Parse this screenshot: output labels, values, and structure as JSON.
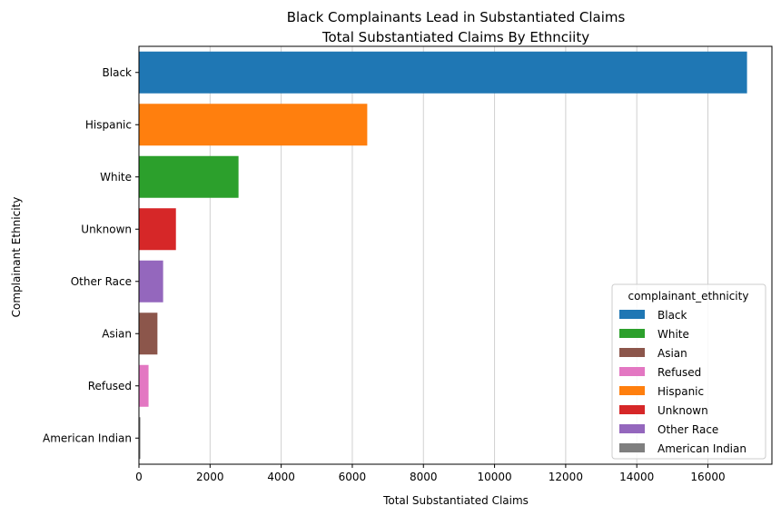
{
  "chart_data": {
    "type": "bar",
    "orientation": "horizontal",
    "title": "Black Complainants Lead in Substantiated Claims",
    "subtitle": "Total Substantiated Claims By Ethnciity",
    "xlabel": "Total Substantiated Claims",
    "ylabel": "Complainant Ethnicity",
    "xlim": [
      0,
      17800
    ],
    "xticks": [
      0,
      2000,
      4000,
      6000,
      8000,
      10000,
      12000,
      14000,
      16000
    ],
    "xgrid": true,
    "categories": [
      "Black",
      "Hispanic",
      "White",
      "Unknown",
      "Other Race",
      "Asian",
      "Refused",
      "American Indian"
    ],
    "values": [
      17100,
      6420,
      2800,
      1040,
      680,
      520,
      270,
      40
    ],
    "colors": {
      "Black": "#1f77b4",
      "Hispanic": "#ff7f0e",
      "White": "#2ca02c",
      "Unknown": "#d62728",
      "Other Race": "#9467bd",
      "Asian": "#8c564b",
      "Refused": "#e377c2",
      "American Indian": "#7f7f7f"
    },
    "legend": {
      "title": "complainant_ethnicity",
      "position": "lower-right",
      "entries": [
        "Black",
        "White",
        "Asian",
        "Refused",
        "Hispanic",
        "Unknown",
        "Other Race",
        "American Indian"
      ]
    }
  }
}
